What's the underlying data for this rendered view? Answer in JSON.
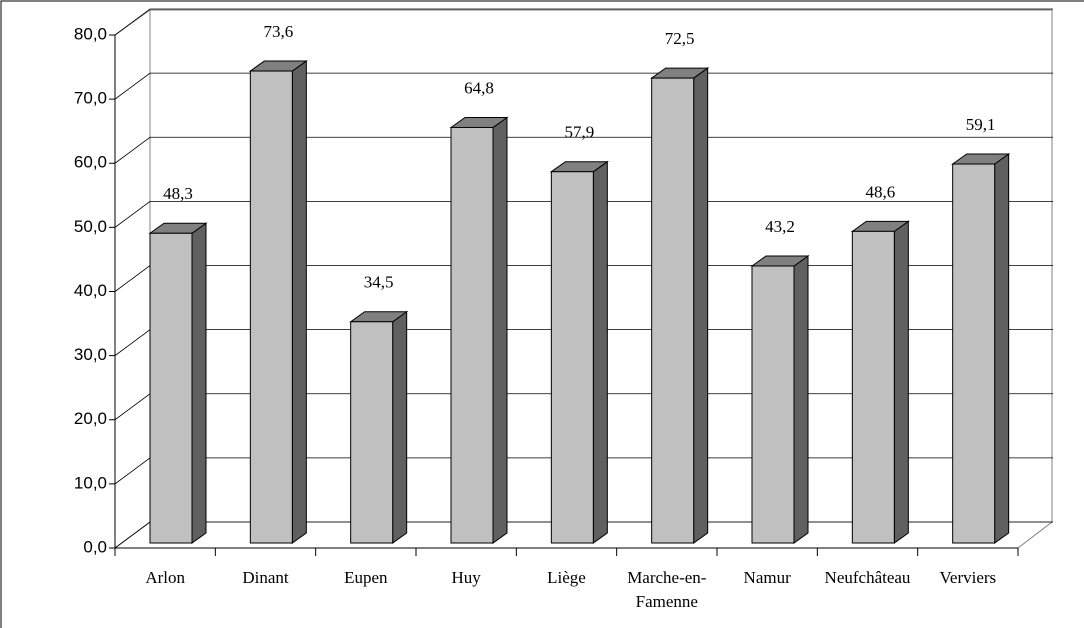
{
  "chart_data": {
    "type": "bar3d",
    "categories": [
      "Arlon",
      "Dinant",
      "Eupen",
      "Huy",
      "Liège",
      "Marche-en-Famenne",
      "Namur",
      "Neufchâteau",
      "Verviers"
    ],
    "values": [
      48.3,
      73.6,
      34.5,
      64.8,
      57.9,
      72.5,
      43.2,
      48.6,
      59.1
    ],
    "value_labels": [
      "48,3",
      "73,6",
      "34,5",
      "64,8",
      "57,9",
      "72,5",
      "43,2",
      "48,6",
      "59,1"
    ],
    "color": "#c0c0c0",
    "ylim": [
      0,
      80
    ],
    "yticks": [
      {
        "value": 0,
        "label": "0,0"
      },
      {
        "value": 10,
        "label": "10,0"
      },
      {
        "value": 20,
        "label": "20,0"
      },
      {
        "value": 30,
        "label": "30,0"
      },
      {
        "value": 40,
        "label": "40,0"
      },
      {
        "value": 50,
        "label": "50,0"
      },
      {
        "value": 60,
        "label": "60,0"
      },
      {
        "value": 70,
        "label": "70,0"
      },
      {
        "value": 80,
        "label": "80,0"
      }
    ],
    "grid": true
  }
}
